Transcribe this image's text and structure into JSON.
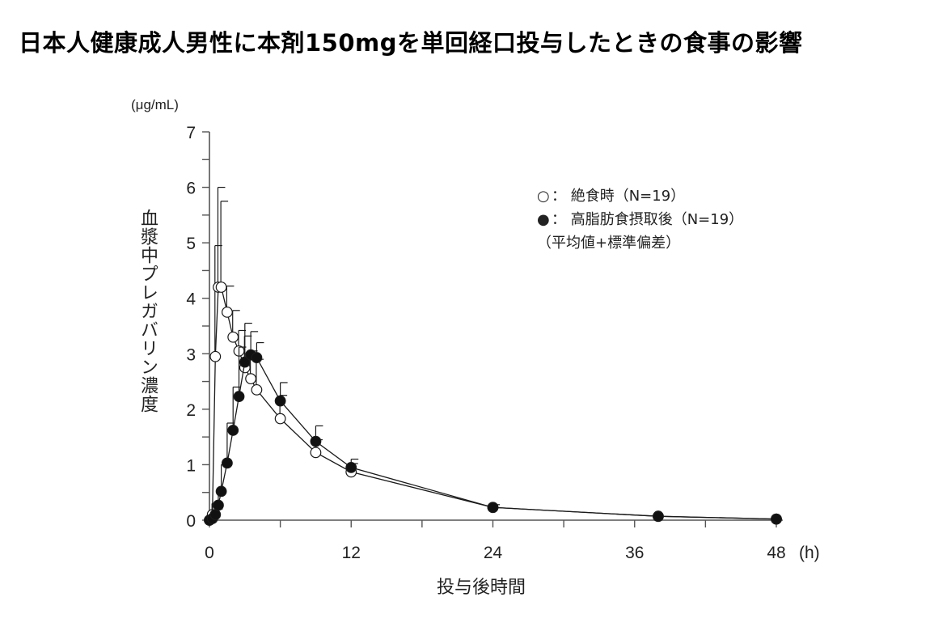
{
  "title": "日本人健康成人男性に本剤150mgを単回経口投与したときの食事の影響",
  "chart_data": {
    "type": "line",
    "title": "日本人健康成人男性に本剤150mgを単回経口投与したときの食事の影響",
    "xlabel": "投与後時間",
    "xunit": "(h)",
    "ylabel": "血漿中プレガバリン濃度",
    "yunit": "(μg/mL)",
    "xlim": [
      0,
      48
    ],
    "ylim": [
      0,
      7
    ],
    "xticks": [
      0,
      12,
      24,
      36,
      48
    ],
    "yticks": [
      0,
      1,
      2,
      3,
      4,
      5,
      6,
      7
    ],
    "grid": false,
    "legend_position": "upper right",
    "legend_note": "（平均値+標準偏差）",
    "x": [
      0,
      0.25,
      0.5,
      0.75,
      1,
      1.5,
      2,
      2.5,
      3,
      3.5,
      4,
      6,
      9,
      12,
      24,
      38,
      48
    ],
    "series": [
      {
        "name": "絶食時（N=19）",
        "marker": "open-circle",
        "x": [
          0,
          0.25,
          0.5,
          0.75,
          1,
          1.5,
          2,
          2.5,
          3,
          3.5,
          4,
          6,
          9,
          12,
          24,
          38,
          48
        ],
        "values": [
          0,
          0.1,
          2.95,
          4.2,
          4.2,
          3.75,
          3.3,
          3.05,
          2.75,
          2.55,
          2.35,
          1.83,
          1.22,
          0.87,
          0.23,
          0.07,
          0.02
        ],
        "sd_upper": [
          0,
          0.3,
          4.95,
          6.0,
          5.75,
          4.22,
          3.78,
          3.42,
          3.32,
          3.05,
          2.9,
          2.25,
          1.45,
          1.02,
          0.28,
          0.1,
          0.05
        ]
      },
      {
        "name": "高脂肪食摂取後（N=19）",
        "marker": "filled-circle",
        "x": [
          0,
          0.25,
          0.5,
          0.75,
          1,
          1.5,
          2,
          2.5,
          3,
          3.5,
          4,
          6,
          9,
          12,
          24,
          38,
          48
        ],
        "values": [
          0,
          0.03,
          0.1,
          0.27,
          0.52,
          1.03,
          1.62,
          2.23,
          2.85,
          2.98,
          2.93,
          2.15,
          1.42,
          0.95,
          0.23,
          0.07,
          0.02
        ],
        "sd_upper": [
          0,
          0.08,
          0.2,
          0.55,
          1.0,
          1.75,
          2.4,
          3.12,
          3.55,
          3.4,
          3.2,
          2.48,
          1.7,
          1.1,
          0.27,
          0.1,
          0.04
        ]
      }
    ]
  },
  "axis": {
    "unit_label": "(μg/mL)",
    "y_label": "血漿中プレガバリン濃度",
    "x_label": "投与後時間",
    "x_unit": "(h)",
    "x_tick_labels": [
      "0",
      "12",
      "24",
      "36",
      "48"
    ],
    "y_tick_labels": [
      "0",
      "1",
      "2",
      "3",
      "4",
      "5",
      "6",
      "7"
    ]
  },
  "legend": {
    "fasting_symbol": "○",
    "fasting_label": "： 絶食時（N=19）",
    "fed_symbol": "●",
    "fed_label": "： 高脂肪食摂取後（N=19）",
    "note": "（平均値+標準偏差）"
  },
  "colors": {
    "line": "#1a1a1a",
    "axis": "#555555",
    "open_marker_fill": "#ffffff",
    "filled_marker_fill": "#111111"
  }
}
